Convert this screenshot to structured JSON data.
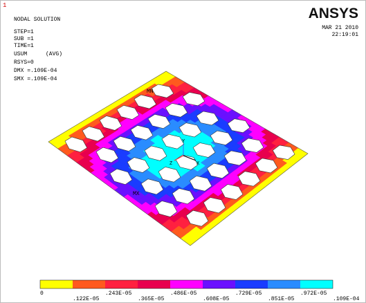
{
  "window_number": "1",
  "header": {
    "title": "NODAL SOLUTION",
    "lines": [
      "STEP=1",
      "SUB =1",
      "TIME=1"
    ],
    "quantity": "USUM",
    "averaging": "(AVG)",
    "rsys": "RSYS=0",
    "dmx": "DMX =.109E-04",
    "smx": "SMX =.109E-04"
  },
  "logo": "ANSYS",
  "date": "MAR 21 2010",
  "time": "22:19:01",
  "plot": {
    "min_label": "MN",
    "max_label": "MX",
    "triad": [
      "Y",
      "Z",
      "X"
    ]
  },
  "legend": {
    "labels": [
      "0",
      ".122E-05",
      ".243E-05",
      ".365E-05",
      ".486E-05",
      ".608E-05",
      ".729E-05",
      ".851E-05",
      ".972E-05",
      ".109E-04"
    ],
    "colors": [
      "#ffff00",
      "#ff5a1e",
      "#ff2040",
      "#e8004e",
      "#ff00ff",
      "#6a10ff",
      "#1a3cff",
      "#2a8cff",
      "#00ffff"
    ]
  }
}
